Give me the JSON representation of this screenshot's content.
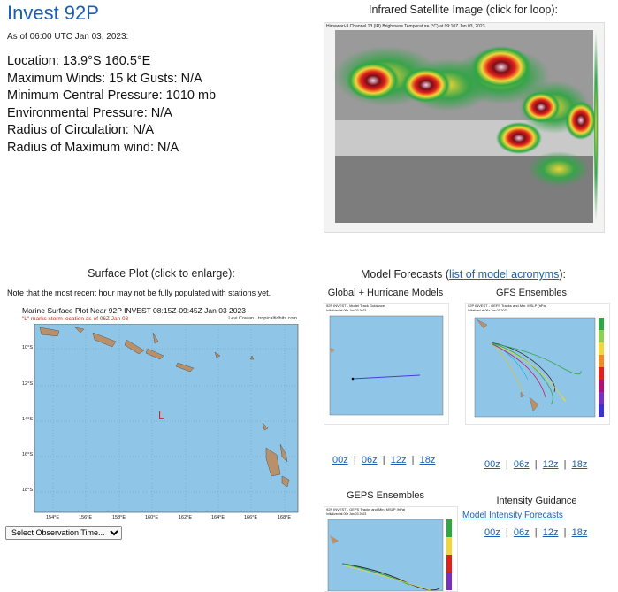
{
  "storm": {
    "title": "Invest 92P",
    "as_of": "As of 06:00 UTC Jan 03, 2023:",
    "location": "Location: 13.9°S 160.5°E",
    "winds": "Maximum Winds: 15 kt  Gusts: N/A",
    "pressure": "Minimum Central Pressure: 1010 mb",
    "env_pressure": "Environmental Pressure: N/A",
    "radius_circ": "Radius of Circulation: N/A",
    "radius_max": "Radius of Maximum wind: N/A"
  },
  "satellite": {
    "heading": "Infrared Satellite Image (click for loop):",
    "caption": "Himawari-9 Channel 13 (IR) Brightness Temperature (°C) at 09:10Z Jan 03, 2023"
  },
  "surface": {
    "heading": "Surface Plot (click to enlarge):",
    "note": "Note that the most recent hour may not be fully populated with stations yet.",
    "plot_title": "Marine Surface Plot Near 92P INVEST 08:15Z-09:45Z Jan 03 2023",
    "plot_sub": "\"L\" marks storm location as of 06Z Jan 03",
    "credit": "Levi Cowan - tropicaltidbits.com",
    "storm_marker": "L",
    "lat_labels": [
      "10°S",
      "12°S",
      "14°S",
      "16°S",
      "18°S"
    ],
    "lon_labels": [
      "154°E",
      "156°E",
      "158°E",
      "160°E",
      "162°E",
      "164°E",
      "166°E",
      "168°E"
    ],
    "select_label": "Select Observation Time..."
  },
  "models": {
    "heading_prefix": "Model Forecasts (",
    "heading_link": "list of model acronyms",
    "heading_suffix": "):",
    "global_title": "Global + Hurricane Models",
    "gfs_title": "GFS Ensembles",
    "geps_title": "GEPS Ensembles",
    "intensity_title": "Intensity Guidance",
    "intensity_link": "Model Intensity Forecasts",
    "global_img_title": "92P INVEST - Model Track Guidance",
    "global_img_sub": "Initialized at 06z Jan 03 2023",
    "gfs_img_title": "92P INVEST - GEFS Tracks and Min. MSLP (hPa)",
    "gfs_img_sub": "Initialized at 06z Jan 03 2023",
    "geps_img_title": "92P INVEST - GEPS Tracks and Min. MSLP (hPa)",
    "geps_img_sub": "Initialized at 00z Jan 03 2023",
    "runs": [
      "00z",
      "06z",
      "12z",
      "18z"
    ],
    "sep": "|"
  },
  "colors": {
    "title_blue": "#1a5fb4",
    "ocean": "#8fc6e8",
    "land": "#b8906a",
    "marker_red": "#e0201a"
  }
}
